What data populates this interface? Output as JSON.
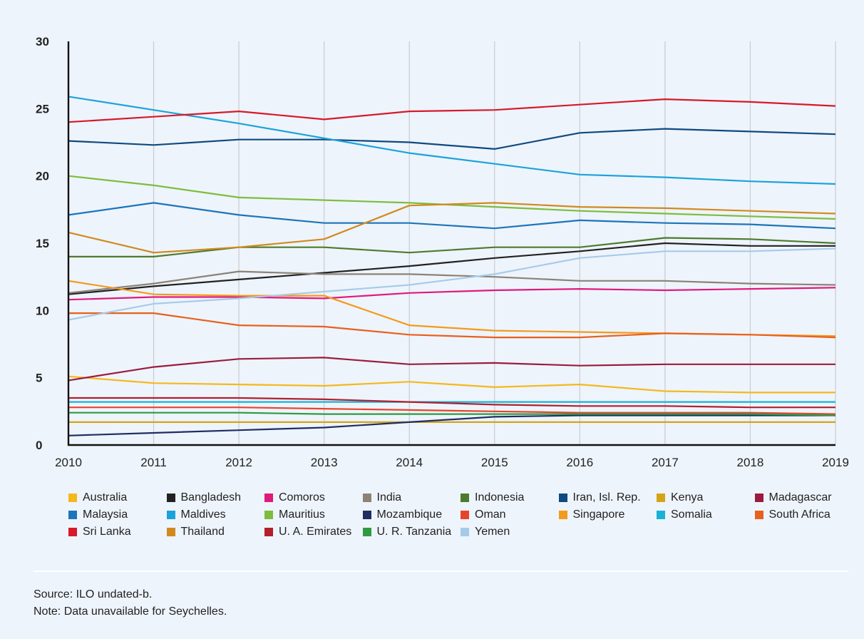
{
  "chart_data": {
    "type": "line",
    "x": [
      "2010",
      "2011",
      "2012",
      "2013",
      "2014",
      "2015",
      "2016",
      "2017",
      "2018",
      "2019"
    ],
    "ylim": [
      0,
      30
    ],
    "yticks": [
      "0",
      "5",
      "10",
      "15",
      "20",
      "25",
      "30"
    ],
    "grid": "vertical",
    "legend_position": "bottom",
    "series": [
      {
        "name": "Australia",
        "color": "#f5b81c",
        "values": [
          5.1,
          4.6,
          4.5,
          4.4,
          4.7,
          4.3,
          4.5,
          4.0,
          3.9,
          3.9
        ]
      },
      {
        "name": "Bangladesh",
        "color": "#222222",
        "values": [
          11.2,
          11.8,
          12.3,
          12.8,
          13.3,
          13.9,
          14.4,
          15.0,
          14.8,
          14.8
        ]
      },
      {
        "name": "Comoros",
        "color": "#e0197d",
        "values": [
          10.8,
          11.0,
          11.0,
          10.9,
          11.3,
          11.5,
          11.6,
          11.5,
          11.6,
          11.7
        ]
      },
      {
        "name": "India",
        "color": "#8c8276",
        "values": [
          11.3,
          12.0,
          12.9,
          12.7,
          12.7,
          12.5,
          12.2,
          12.2,
          12.0,
          11.9
        ]
      },
      {
        "name": "Indonesia",
        "color": "#4e7a2e",
        "values": [
          14.0,
          14.0,
          14.7,
          14.7,
          14.3,
          14.7,
          14.7,
          15.4,
          15.3,
          15.0
        ]
      },
      {
        "name": "Iran, Isl. Rep.",
        "color": "#0e4a80",
        "values": [
          22.6,
          22.3,
          22.7,
          22.7,
          22.5,
          22.0,
          23.2,
          23.5,
          23.3,
          23.1
        ]
      },
      {
        "name": "Kenya",
        "color": "#d4a418",
        "values": [
          1.7,
          1.7,
          1.7,
          1.7,
          1.7,
          1.7,
          1.7,
          1.7,
          1.7,
          1.7
        ]
      },
      {
        "name": "Madagascar",
        "color": "#9b1b3e",
        "values": [
          4.8,
          5.8,
          6.4,
          6.5,
          6.0,
          6.1,
          5.9,
          6.0,
          6.0,
          6.0
        ]
      },
      {
        "name": "Malaysia",
        "color": "#1b75bb",
        "values": [
          17.1,
          18.0,
          17.1,
          16.5,
          16.5,
          16.1,
          16.7,
          16.5,
          16.4,
          16.1
        ]
      },
      {
        "name": "Maldives",
        "color": "#1aa3db",
        "values": [
          25.9,
          24.9,
          23.9,
          22.8,
          21.7,
          20.9,
          20.1,
          19.9,
          19.6,
          19.4
        ]
      },
      {
        "name": "Mauritius",
        "color": "#7cbd3e",
        "values": [
          20.0,
          19.3,
          18.4,
          18.2,
          18.0,
          17.7,
          17.4,
          17.2,
          17.0,
          16.8
        ]
      },
      {
        "name": "Mozambique",
        "color": "#1f2e64",
        "values": [
          0.7,
          0.9,
          1.1,
          1.3,
          1.7,
          2.1,
          2.2,
          2.2,
          2.2,
          2.2
        ]
      },
      {
        "name": "Oman",
        "color": "#e8442c",
        "values": [
          2.8,
          2.8,
          2.8,
          2.7,
          2.6,
          2.5,
          2.4,
          2.4,
          2.4,
          2.3
        ]
      },
      {
        "name": "Singapore",
        "color": "#f39a1c",
        "values": [
          12.2,
          11.2,
          11.1,
          11.1,
          8.9,
          8.5,
          8.4,
          8.3,
          8.2,
          8.1
        ]
      },
      {
        "name": "Somalia",
        "color": "#18b2d8",
        "values": [
          3.2,
          3.2,
          3.2,
          3.2,
          3.2,
          3.2,
          3.2,
          3.2,
          3.2,
          3.2
        ]
      },
      {
        "name": "South Africa",
        "color": "#e8601e",
        "values": [
          9.8,
          9.8,
          8.9,
          8.8,
          8.2,
          8.0,
          8.0,
          8.3,
          8.2,
          8.0
        ]
      },
      {
        "name": "Sri Lanka",
        "color": "#d7192a",
        "values": [
          24.0,
          24.4,
          24.8,
          24.2,
          24.8,
          24.9,
          25.3,
          25.7,
          25.5,
          25.2
        ]
      },
      {
        "name": "Thailand",
        "color": "#d08a1e",
        "values": [
          15.8,
          14.3,
          14.7,
          15.3,
          17.8,
          18.0,
          17.7,
          17.6,
          17.4,
          17.2
        ]
      },
      {
        "name": "U. A. Emirates",
        "color": "#b21f2d",
        "values": [
          3.5,
          3.5,
          3.5,
          3.4,
          3.2,
          3.0,
          2.9,
          2.9,
          2.8,
          2.8
        ]
      },
      {
        "name": "U. R. Tanzania",
        "color": "#2e9a42",
        "values": [
          2.4,
          2.4,
          2.4,
          2.3,
          2.3,
          2.3,
          2.3,
          2.3,
          2.3,
          2.2
        ]
      },
      {
        "name": "Yemen",
        "color": "#a6cbea",
        "values": [
          9.3,
          10.5,
          10.9,
          11.4,
          11.9,
          12.7,
          13.9,
          14.4,
          14.4,
          14.6
        ]
      }
    ]
  },
  "footer": {
    "source": "Source: ILO undated-b.",
    "note": "Note: Data unavailable for Seychelles."
  }
}
